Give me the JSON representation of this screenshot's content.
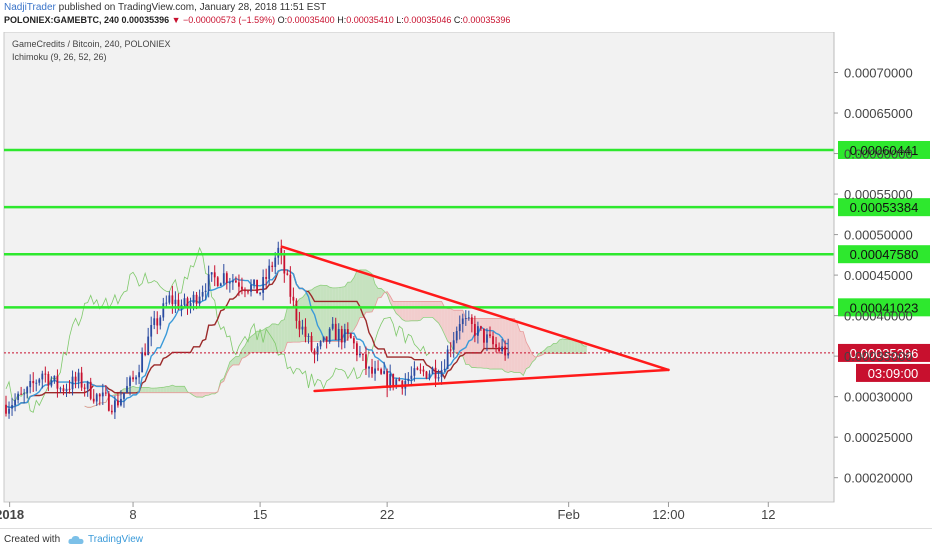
{
  "header": {
    "author": "NadjiTrader",
    "published_text": "published on TradingView.com, January 28, 2018 11:51 EST",
    "symbol": "POLONIEX:GAMEBTC, 240",
    "price": "0.00035396",
    "change": "▼ −0.00000573 (−1.59%)",
    "o_label": "O:",
    "o_value": "0.00035400",
    "h_label": "H:",
    "h_value": "0.00035410",
    "l_label": "L:",
    "l_value": "0.00035046",
    "c_label": "C:",
    "c_value": "0.00035396"
  },
  "legend": {
    "line1": "GameCredits / Bitcoin, 240, POLONIEX",
    "line2": "Ichimoku (9, 26, 52, 26)"
  },
  "footer": {
    "created_with": "Created with",
    "brand": "TradingView"
  },
  "colors": {
    "up": "#2a4aa0",
    "down": "#c8102e",
    "level_line": "#2ee82e",
    "trend_line": "#ff1a1a",
    "conversion": "#3a9ad9",
    "base": "#9b2a2a",
    "lagging": "#7fc96b",
    "cloud_bull": "#b7dcae",
    "cloud_bear": "#f2c0c0"
  },
  "chart_data": {
    "type": "candlestick",
    "symbol": "POLONIEX:GAMEBTC",
    "timeframe": "240",
    "y_range": [
      0.00017,
      0.00075
    ],
    "y_ticks": [
      "0.00070000",
      "0.00065000",
      "0.00060000",
      "0.00055000",
      "0.00050000",
      "0.00045000",
      "0.00040000",
      "0.00035000",
      "0.00030000",
      "0.00025000",
      "0.00020000"
    ],
    "x_range_days": [
      0,
      37
    ],
    "x_ticks": [
      {
        "day": 0.2,
        "label": "2018"
      },
      {
        "day": 7,
        "label": "8"
      },
      {
        "day": 14,
        "label": "15"
      },
      {
        "day": 21,
        "label": "22"
      },
      {
        "day": 31,
        "label": "Feb"
      },
      {
        "day": 36.5,
        "label": "12:00"
      },
      {
        "day": 42,
        "label": "12"
      }
    ],
    "horizontal_levels": [
      {
        "price": 0.00060441,
        "label": "0.00060441"
      },
      {
        "price": 0.00053384,
        "label": "0.00053384"
      },
      {
        "price": 0.0004758,
        "label": "0.00047580"
      },
      {
        "price": 0.00041023,
        "label": "0.00041023"
      }
    ],
    "current_price": {
      "price": 0.00035396,
      "label": "0.00035396",
      "countdown": "03:09:00"
    },
    "trendlines": [
      {
        "from": [
          15.2,
          0.000485
        ],
        "to": [
          36.5,
          0.000333
        ]
      },
      {
        "from": [
          17.0,
          0.000307
        ],
        "to": [
          36.5,
          0.000333
        ]
      }
    ],
    "close_anchors": [
      [
        0,
        0.00029
      ],
      [
        1,
        0.0003
      ],
      [
        2,
        0.00033
      ],
      [
        3,
        0.00031
      ],
      [
        4,
        0.00032
      ],
      [
        5,
        0.0003
      ],
      [
        6,
        0.00029
      ],
      [
        7,
        0.00032
      ],
      [
        8,
        0.00038
      ],
      [
        9,
        0.00042
      ],
      [
        10,
        0.00041
      ],
      [
        11,
        0.00044
      ],
      [
        12,
        0.00045
      ],
      [
        13,
        0.00044
      ],
      [
        14,
        0.00043
      ],
      [
        15,
        0.00048
      ],
      [
        16,
        0.0004
      ],
      [
        17,
        0.00035
      ],
      [
        18,
        0.00038
      ],
      [
        19,
        0.00037
      ],
      [
        20,
        0.00033
      ],
      [
        21,
        0.00032
      ],
      [
        22,
        0.00032
      ],
      [
        23,
        0.00033
      ],
      [
        24,
        0.000335
      ],
      [
        25,
        0.000395
      ],
      [
        26,
        0.00038
      ],
      [
        27,
        0.00036
      ],
      [
        27.8,
        0.000354
      ]
    ],
    "ichimoku": {
      "conversion": 9,
      "base": 26,
      "span_b": 52,
      "displacement": 26
    }
  }
}
